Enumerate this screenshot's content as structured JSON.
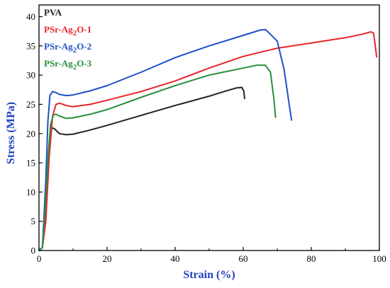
{
  "chart_data": {
    "type": "line",
    "xlabel": "Strain (%)",
    "ylabel": "Stress (MPa)",
    "xlim": [
      0,
      100
    ],
    "ylim": [
      0,
      42
    ],
    "xticks": [
      "0",
      "20",
      "40",
      "60",
      "80",
      "100"
    ],
    "yticks": [
      "0",
      "5",
      "10",
      "15",
      "20",
      "25",
      "30",
      "35",
      "40"
    ],
    "grid": false,
    "legend_position": "top-left",
    "series": [
      {
        "name": "PVA",
        "name_parts": [
          "PVA"
        ],
        "color": "#222222",
        "x": [
          0,
          1,
          2,
          2.6,
          3.2,
          3.8,
          4.6,
          6,
          8,
          10,
          15,
          20,
          30,
          40,
          50,
          55,
          58,
          59.6,
          60.2,
          60.4
        ],
        "y": [
          0,
          0.5,
          8,
          15,
          19.5,
          21.0,
          20.8,
          20.0,
          19.8,
          19.9,
          20.6,
          21.4,
          23.1,
          24.8,
          26.4,
          27.3,
          27.8,
          27.9,
          27.2,
          26.0
        ]
      },
      {
        "name": "PSr-Ag2O-1",
        "name_parts": [
          "PSr-Ag",
          "2",
          "O-1"
        ],
        "color": "#e8252a",
        "x": [
          0,
          1,
          2,
          3,
          4,
          5,
          6,
          8,
          10,
          15,
          20,
          30,
          40,
          50,
          60,
          70,
          80,
          90,
          95,
          97.5,
          98.3,
          98.8,
          99.2
        ],
        "y": [
          0,
          0.5,
          5,
          16,
          23,
          25.0,
          25.2,
          24.8,
          24.6,
          25.0,
          25.7,
          27.2,
          29.0,
          31.2,
          33.2,
          34.6,
          35.5,
          36.4,
          37.0,
          37.4,
          37.2,
          35.0,
          33.1
        ]
      },
      {
        "name": "PSr-Ag2O-2",
        "name_parts": [
          "PSr-Ag",
          "2",
          "O-2"
        ],
        "color": "#1f4fc8",
        "x": [
          0,
          1,
          2,
          2.6,
          3.2,
          4,
          5,
          6,
          8,
          10,
          15,
          20,
          30,
          40,
          50,
          60,
          65,
          66.5,
          68,
          70,
          72,
          73.5,
          74.2
        ],
        "y": [
          0,
          0.5,
          12,
          22,
          26.5,
          27.2,
          27.0,
          26.7,
          26.5,
          26.6,
          27.3,
          28.2,
          30.5,
          33.0,
          35.0,
          36.8,
          37.7,
          37.8,
          37.0,
          35.8,
          31.0,
          25.0,
          22.3
        ]
      },
      {
        "name": "PSr-Ag2O-3",
        "name_parts": [
          "PSr-Ag",
          "2",
          "O-3"
        ],
        "color": "#2a8f3c",
        "x": [
          0,
          1,
          2,
          2.8,
          3.4,
          4.2,
          5,
          6,
          8,
          10,
          15,
          20,
          30,
          40,
          50,
          60,
          64,
          66.5,
          68,
          69,
          69.5
        ],
        "y": [
          0,
          0.5,
          9,
          17,
          21.5,
          23.2,
          23.3,
          23.0,
          22.6,
          22.7,
          23.3,
          24.1,
          26.2,
          28.2,
          30.0,
          31.2,
          31.7,
          31.7,
          30.5,
          26.0,
          22.8
        ]
      }
    ]
  }
}
